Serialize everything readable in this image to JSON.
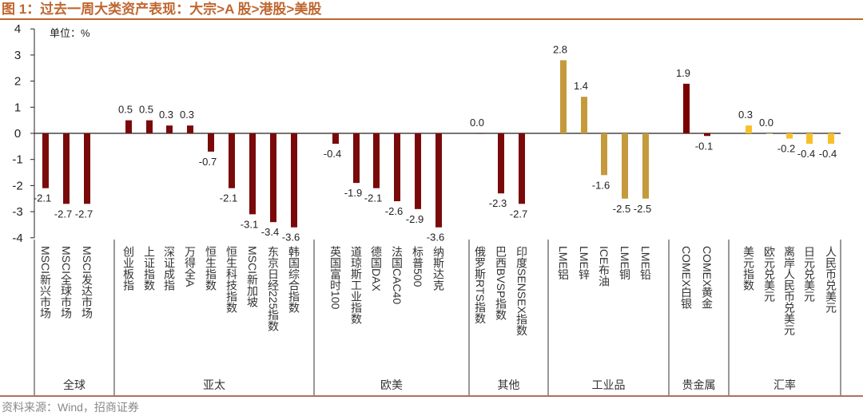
{
  "chart_data": {
    "type": "bar",
    "title": "图 1：过去一周大类资产表现：大宗>A 股>港股>美股",
    "unit_label": "单位：%",
    "source": "资料来源：Wind，招商证券",
    "ylim": [
      -4,
      4
    ],
    "yticks": [
      "4",
      "3",
      "2",
      "1",
      "0",
      "-1",
      "-2",
      "-3",
      "-4"
    ],
    "colors": {
      "equity": "#7a0a0a",
      "commodity": "#c49a3c",
      "precious": "#7a0000",
      "fx": "#f7c02a",
      "title": "#c0662f"
    },
    "groups": [
      {
        "name": "全球",
        "color_key": "equity",
        "items": [
          {
            "label": "MSCI新兴市场",
            "value": -2.1
          },
          {
            "label": "MSCI全球市场",
            "value": -2.7
          },
          {
            "label": "MSCI发达市场",
            "value": -2.7
          }
        ]
      },
      {
        "name": "亚太",
        "color_key": "equity",
        "items": [
          {
            "label": "创业板指",
            "value": 0.5
          },
          {
            "label": "上证指数",
            "value": 0.5
          },
          {
            "label": "深证成指",
            "value": 0.3
          },
          {
            "label": "万得全A",
            "value": 0.3
          },
          {
            "label": "恒生指数",
            "value": -0.7
          },
          {
            "label": "恒生科技指数",
            "value": -2.1
          },
          {
            "label": "MSCI新加坡",
            "value": -3.1
          },
          {
            "label": "东京日经225指数",
            "value": -3.4
          },
          {
            "label": "韩国综合指数",
            "value": -3.6
          }
        ]
      },
      {
        "name": "欧美",
        "color_key": "equity",
        "items": [
          {
            "label": "英国富时100",
            "value": -0.4
          },
          {
            "label": "道琼斯工业指数",
            "value": -1.9
          },
          {
            "label": "德国DAX",
            "value": -2.1
          },
          {
            "label": "法国CAC40",
            "value": -2.6
          },
          {
            "label": "标普500",
            "value": -2.9
          },
          {
            "label": "纳斯达克",
            "value": -3.6
          }
        ]
      },
      {
        "name": "其他",
        "color_key": "equity",
        "items": [
          {
            "label": "俄罗斯RTS指数",
            "value": 0.0
          },
          {
            "label": "巴西BVSP指数",
            "value": -2.3
          },
          {
            "label": "印度SENSEX指数",
            "value": -2.7
          }
        ]
      },
      {
        "name": "工业品",
        "color_key": "commodity",
        "items": [
          {
            "label": "LME铝",
            "value": 2.8
          },
          {
            "label": "LME锌",
            "value": 1.4
          },
          {
            "label": "ICE布油",
            "value": -1.6
          },
          {
            "label": "LME铜",
            "value": -2.5
          },
          {
            "label": "LME铅",
            "value": -2.5
          }
        ]
      },
      {
        "name": "贵金属",
        "color_key": "precious",
        "items": [
          {
            "label": "COMEX白银",
            "value": 1.9
          },
          {
            "label": "COMEX黄金",
            "value": -0.1
          }
        ]
      },
      {
        "name": "汇率",
        "color_key": "fx",
        "items": [
          {
            "label": "美元指数",
            "value": 0.3
          },
          {
            "label": "欧元兑美元",
            "value": 0.0
          },
          {
            "label": "离岸人民币兑美元",
            "value": -0.2
          },
          {
            "label": "日元兑美元",
            "value": -0.4
          },
          {
            "label": "人民币兑美元",
            "value": -0.4
          }
        ]
      }
    ]
  }
}
